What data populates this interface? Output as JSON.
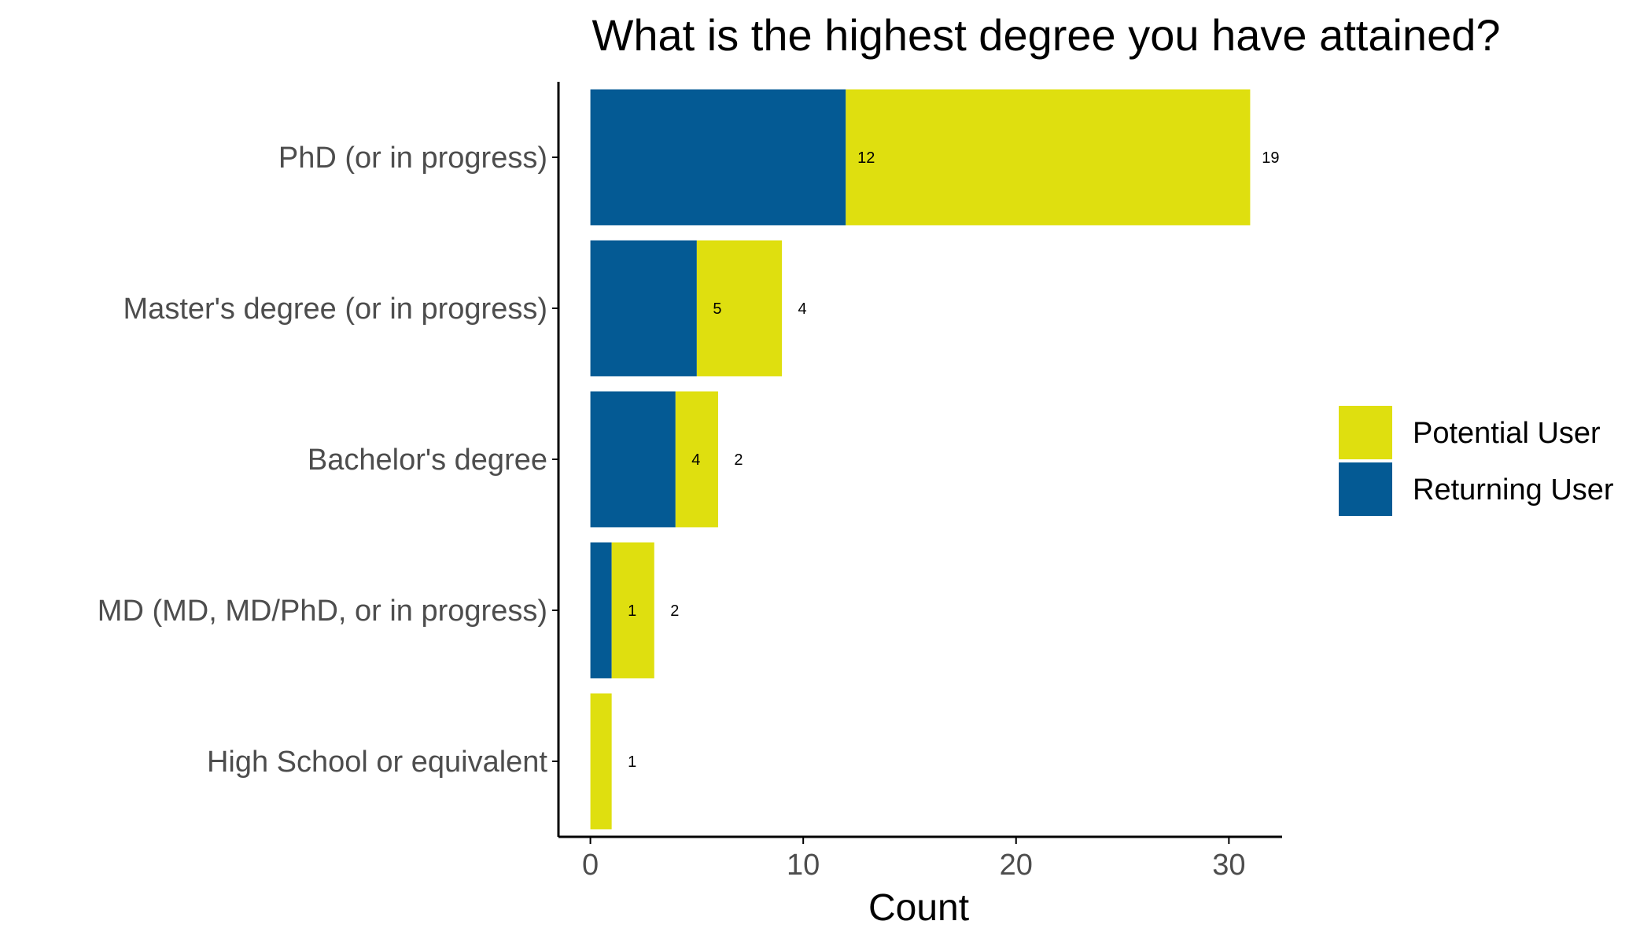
{
  "chart_data": {
    "type": "bar",
    "orientation": "horizontal",
    "stacked": true,
    "title": "What is the highest degree you have attained?",
    "xlabel": "Count",
    "ylabel": "",
    "xlim": [
      -1.5,
      32.5
    ],
    "xticks": [
      0,
      10,
      20,
      30
    ],
    "grid": false,
    "legend_position": "right",
    "categories": [
      "PhD (or in progress)",
      "Master's degree (or in progress)",
      "Bachelor's degree",
      "MD (MD, MD/PhD, or in progress)",
      "High School or equivalent"
    ],
    "series": [
      {
        "name": "Returning User",
        "color": "#045a94",
        "values": [
          12,
          5,
          4,
          1,
          0
        ],
        "labels": [
          "12",
          "5",
          "4",
          "1",
          ""
        ]
      },
      {
        "name": "Potential User",
        "color": "#dfdf0f",
        "values": [
          19,
          4,
          2,
          2,
          1
        ],
        "labels": [
          "19",
          "4",
          "2",
          "2",
          "1"
        ]
      }
    ],
    "legend_order": [
      "Potential User",
      "Returning User"
    ]
  }
}
